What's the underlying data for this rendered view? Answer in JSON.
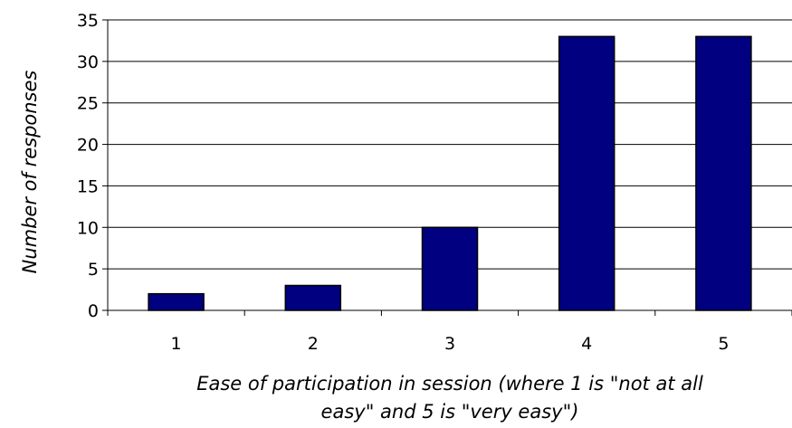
{
  "chart_data": {
    "type": "bar",
    "categories": [
      "1",
      "2",
      "3",
      "4",
      "5"
    ],
    "values": [
      2,
      3,
      10,
      33,
      33
    ],
    "title": "",
    "xlabel": "Ease of participation in session (where 1 is \"not at all easy\" and 5 is \"very easy\")",
    "xlabel_lines": [
      "Ease of participation in session (where 1 is \"not at all",
      "easy\" and 5 is \"very easy\")"
    ],
    "ylabel": "Number of responses",
    "ylim": [
      0,
      35
    ],
    "yticks": [
      "0",
      "5",
      "10",
      "15",
      "20",
      "25",
      "30",
      "35"
    ],
    "grid": true,
    "legend": "none",
    "colors": {
      "bar_fill": "#000080",
      "bar_stroke": "#000000",
      "grid": "#000000",
      "axis": "#000000"
    }
  }
}
